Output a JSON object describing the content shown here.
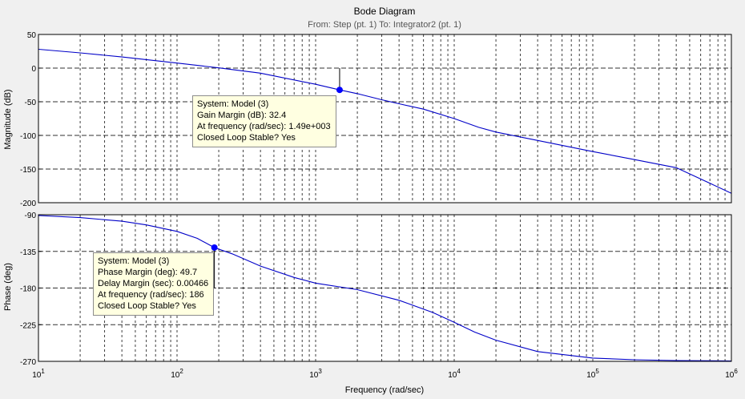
{
  "title": "Bode Diagram",
  "subtitle": "From: Step (pt. 1)  To: Integrator2 (pt. 1)",
  "xlabel": "Frequency  (rad/sec)",
  "colors": {
    "curve": "#0000c8",
    "marker": "#0000ff",
    "background": "#f0f0f0",
    "axes_bg": "#ffffff",
    "grid": "#000000",
    "tooltip_bg": "#ffffe1"
  },
  "chart_data": [
    {
      "type": "line",
      "panel": "magnitude",
      "ylabel": "Magnitude (dB)",
      "x_scale": "log",
      "xlim": [
        10,
        1000000
      ],
      "ylim": [
        -200,
        50
      ],
      "yticks": [
        50,
        0,
        -50,
        -100,
        -150,
        -200
      ],
      "grid": true,
      "series": [
        {
          "x": [
            10,
            20,
            40,
            100,
            200,
            400,
            1000,
            1490,
            2000,
            3000,
            4000,
            6000,
            10000,
            15000,
            20000,
            40000,
            100000,
            200000,
            400000,
            1000000
          ],
          "y": [
            28,
            22.6,
            16.5,
            7.5,
            0.3,
            -7.5,
            -24,
            -32.4,
            -38,
            -47,
            -53,
            -61,
            -75,
            -88,
            -95,
            -107.5,
            -124,
            -136,
            -148,
            -186
          ]
        }
      ],
      "marker": {
        "x": 1490,
        "y": -32.4
      },
      "datatip": [
        "System: Model (3)",
        "Gain Margin (dB): 32.4",
        "At frequency (rad/sec): 1.49e+003",
        "Closed Loop Stable? Yes"
      ]
    },
    {
      "type": "line",
      "panel": "phase",
      "ylabel": "Phase (deg)",
      "x_scale": "log",
      "xlim": [
        10,
        1000000
      ],
      "ylim": [
        -270,
        -90
      ],
      "yticks": [
        -90,
        -135,
        -180,
        -225,
        -270
      ],
      "grid": true,
      "series": [
        {
          "x": [
            10,
            20,
            40,
            60,
            100,
            140,
            186,
            250,
            400,
            700,
            1000,
            2000,
            4000,
            7000,
            10000,
            14000,
            20000,
            40000,
            100000,
            200000,
            400000,
            1000000
          ],
          "y": [
            -91,
            -93.5,
            -98,
            -102.5,
            -110.5,
            -119,
            -130.3,
            -138,
            -153,
            -167,
            -174,
            -182,
            -195,
            -210,
            -222,
            -234,
            -244,
            -258,
            -266,
            -268,
            -269,
            -269.5
          ]
        }
      ],
      "marker": {
        "x": 186,
        "y": -130.3
      },
      "datatip": [
        "System: Model (3)",
        "Phase Margin (deg): 49.7",
        "Delay Margin (sec): 0.00466",
        "At frequency (rad/sec): 186",
        "Closed Loop Stable? Yes"
      ]
    }
  ],
  "x_tick_labels": [
    {
      "base": "10",
      "exp": "1"
    },
    {
      "base": "10",
      "exp": "2"
    },
    {
      "base": "10",
      "exp": "3"
    },
    {
      "base": "10",
      "exp": "4"
    },
    {
      "base": "10",
      "exp": "5"
    },
    {
      "base": "10",
      "exp": "6"
    }
  ]
}
